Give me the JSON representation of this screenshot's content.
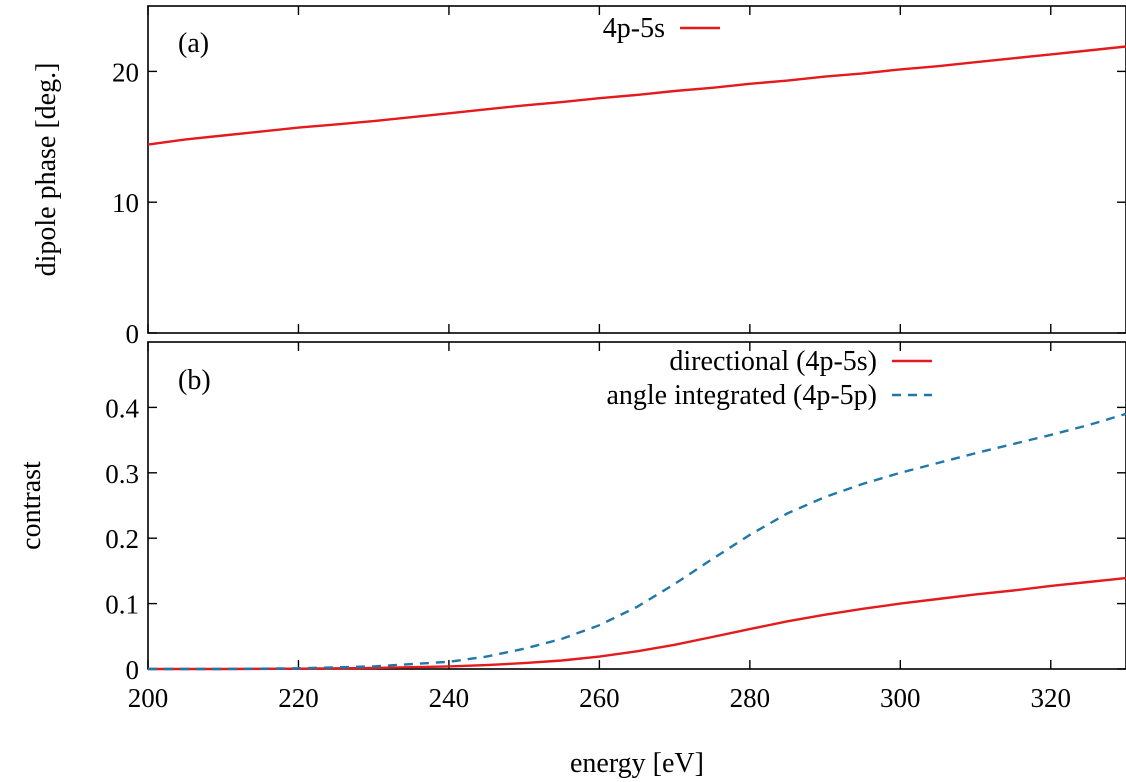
{
  "chart_data": [
    {
      "type": "line",
      "panel_label": "(a)",
      "xlabel": "",
      "ylabel": "dipole phase [deg.]",
      "xlim": [
        200,
        330
      ],
      "ylim": [
        0,
        25
      ],
      "xticks": [
        200,
        220,
        240,
        260,
        280,
        300,
        320
      ],
      "yticks": [
        0,
        10,
        20
      ],
      "grid": false,
      "legend_position": "top-center",
      "series": [
        {
          "name": "4p-5s",
          "color": "#e41a1c",
          "dash": "solid",
          "x": [
            200,
            205,
            210,
            215,
            220,
            225,
            230,
            235,
            240,
            245,
            250,
            255,
            260,
            265,
            270,
            275,
            280,
            285,
            290,
            295,
            300,
            305,
            310,
            315,
            320,
            325,
            330
          ],
          "y": [
            14.4,
            14.8,
            15.1,
            15.4,
            15.7,
            15.95,
            16.2,
            16.5,
            16.8,
            17.1,
            17.4,
            17.65,
            17.95,
            18.2,
            18.5,
            18.75,
            19.05,
            19.3,
            19.6,
            19.85,
            20.15,
            20.4,
            20.7,
            21.0,
            21.3,
            21.6,
            21.9
          ]
        }
      ]
    },
    {
      "type": "line",
      "panel_label": "(b)",
      "xlabel": "energy [eV]",
      "ylabel": "contrast",
      "xlim": [
        200,
        330
      ],
      "ylim": [
        0,
        0.5
      ],
      "xticks": [
        200,
        220,
        240,
        260,
        280,
        300,
        320
      ],
      "yticks": [
        0,
        0.1,
        0.2,
        0.3,
        0.4
      ],
      "grid": false,
      "legend_position": "top-right",
      "series": [
        {
          "name": "directional (4p-5s)",
          "color": "#e41a1c",
          "dash": "solid",
          "x": [
            200,
            210,
            220,
            230,
            240,
            245,
            250,
            255,
            260,
            265,
            270,
            275,
            280,
            285,
            290,
            295,
            300,
            305,
            310,
            315,
            320,
            325,
            330
          ],
          "y": [
            0,
            0,
            0.0005,
            0.0015,
            0.004,
            0.006,
            0.009,
            0.013,
            0.019,
            0.027,
            0.037,
            0.049,
            0.061,
            0.073,
            0.083,
            0.092,
            0.1,
            0.107,
            0.114,
            0.12,
            0.127,
            0.133,
            0.139
          ]
        },
        {
          "name": "angle integrated (4p-5p)",
          "color": "#1f78a8",
          "dash": "dashed",
          "x": [
            200,
            210,
            220,
            230,
            240,
            245,
            250,
            255,
            260,
            265,
            270,
            275,
            280,
            285,
            290,
            295,
            300,
            305,
            310,
            315,
            320,
            325,
            330
          ],
          "y": [
            0,
            0,
            0.001,
            0.004,
            0.011,
            0.019,
            0.031,
            0.046,
            0.067,
            0.095,
            0.13,
            0.168,
            0.205,
            0.238,
            0.263,
            0.283,
            0.3,
            0.315,
            0.33,
            0.344,
            0.358,
            0.373,
            0.39
          ]
        }
      ]
    }
  ]
}
